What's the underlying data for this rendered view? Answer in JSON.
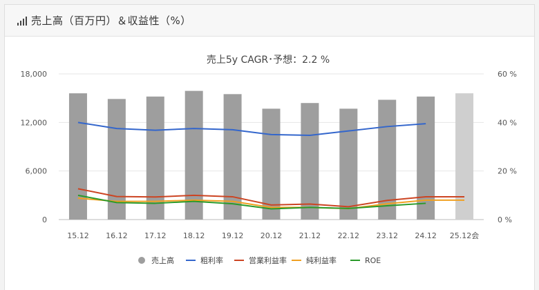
{
  "header": {
    "title": "売上高（百万円）＆収益性（%）",
    "icon": "bar-chart-icon"
  },
  "chart_data": {
    "type": "bar+line",
    "title": "売上5y CAGR･予想：2.2 %",
    "categories": [
      "15.12",
      "16.12",
      "17.12",
      "18.12",
      "19.12",
      "20.12",
      "21.12",
      "22.12",
      "23.12",
      "24.12",
      "25.12会"
    ],
    "y_left": {
      "ticks": [
        "0",
        "6,000",
        "12,000",
        "18,000"
      ],
      "range": [
        0,
        18000
      ]
    },
    "y_right": {
      "ticks": [
        "0 %",
        "20 %",
        "40 %",
        "60 %"
      ],
      "range": [
        0,
        60
      ]
    },
    "grid": true,
    "legend_position": "bottom",
    "bar_series": {
      "name": "売上高",
      "color": "#9e9e9e",
      "forecast_color": "#cfcfcf",
      "values": [
        15600,
        14900,
        15200,
        15900,
        15500,
        13700,
        14400,
        13700,
        14800,
        15200,
        15600
      ]
    },
    "line_series": [
      {
        "name": "粗利率",
        "color": "#3366cc",
        "axis": "right",
        "values": [
          40,
          37.5,
          36.8,
          37.5,
          37.0,
          35.0,
          34.7,
          36.5,
          38.3,
          39.5,
          null
        ]
      },
      {
        "name": "営業利益率",
        "color": "#cc4422",
        "axis": "right",
        "values": [
          12.7,
          9.5,
          9.3,
          10.0,
          9.4,
          6.0,
          6.4,
          5.3,
          7.9,
          9.4,
          9.4
        ]
      },
      {
        "name": "純利益率",
        "color": "#f0a020",
        "axis": "right",
        "values": [
          8.8,
          7.5,
          7.5,
          8.0,
          7.5,
          5.0,
          5.0,
          4.5,
          6.5,
          8.0,
          8.0
        ]
      },
      {
        "name": "ROE",
        "color": "#2a9a2a",
        "axis": "right",
        "values": [
          10.0,
          7.0,
          6.7,
          7.5,
          6.5,
          4.4,
          5.0,
          4.6,
          5.7,
          6.7,
          null
        ]
      }
    ]
  }
}
